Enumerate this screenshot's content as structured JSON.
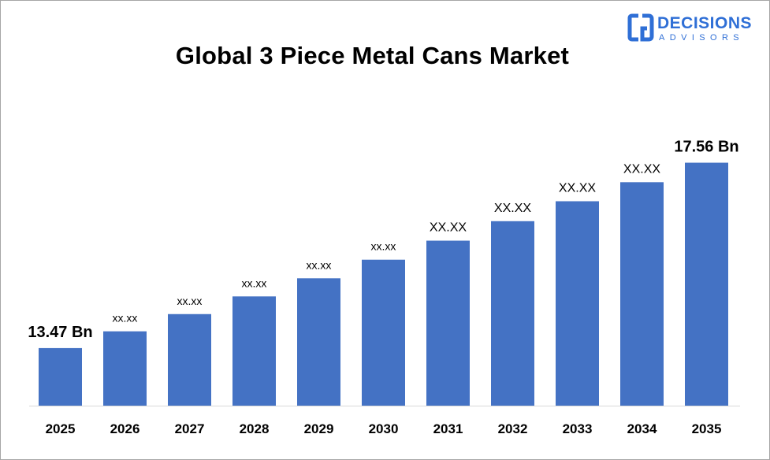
{
  "logo": {
    "name": "DECISIONS",
    "subtitle": "ADVISORS",
    "color": "#2f6fd6"
  },
  "chart_data": {
    "type": "bar",
    "title": "Global 3 Piece Metal Cans Market",
    "xlabel": "",
    "ylabel": "",
    "categories": [
      "2025",
      "2026",
      "2027",
      "2028",
      "2029",
      "2030",
      "2031",
      "2032",
      "2033",
      "2034",
      "2035"
    ],
    "values": [
      13.47,
      13.84,
      14.22,
      14.61,
      15.01,
      15.42,
      15.84,
      16.27,
      16.71,
      17.13,
      17.56
    ],
    "data_labels": [
      "13.47 Bn",
      "xx.xx",
      "xx.xx",
      "xx.xx",
      "xx.xx",
      "xx.xx",
      "XX.XX",
      "XX.XX",
      "XX.XX",
      "XX.XX",
      "17.56 Bn"
    ],
    "ylim": [
      12.2,
      17.9
    ],
    "grid": false,
    "bar_color": "#4472c4"
  }
}
